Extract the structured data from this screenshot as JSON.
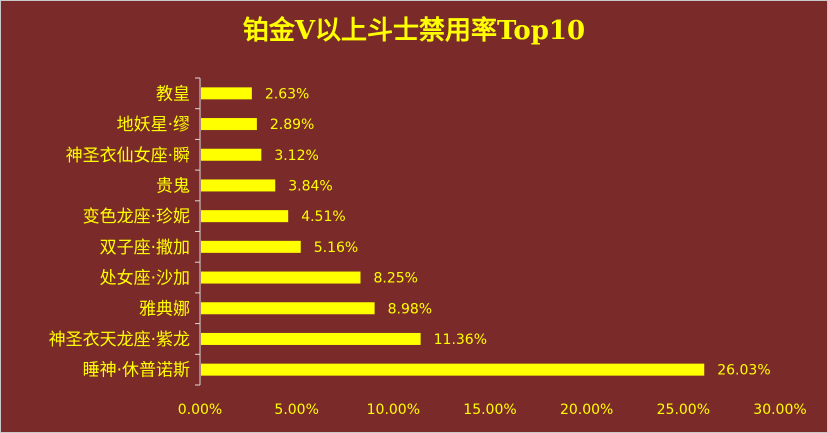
{
  "colors": {
    "background": "#7b2a2a",
    "bar": "#ffff00",
    "text": "#ffff00",
    "axis": "#d9d9d9"
  },
  "chart_data": {
    "type": "bar",
    "orientation": "horizontal",
    "title": "铂金V以上斗士禁用率Top10",
    "categories": [
      "教皇",
      "地妖星·缪",
      "神圣衣仙女座·瞬",
      "贵鬼",
      "变色龙座·珍妮",
      "双子座·撒加",
      "处女座·沙加",
      "雅典娜",
      "神圣衣天龙座·紫龙",
      "睡神·休普诺斯"
    ],
    "values": [
      2.63,
      2.89,
      3.12,
      3.84,
      4.51,
      5.16,
      8.25,
      8.98,
      11.36,
      26.03
    ],
    "value_labels": [
      "2.63%",
      "2.89%",
      "3.12%",
      "3.84%",
      "4.51%",
      "5.16%",
      "8.25%",
      "8.98%",
      "11.36%",
      "26.03%"
    ],
    "x_ticks": [
      "0.00%",
      "5.00%",
      "10.00%",
      "15.00%",
      "20.00%",
      "25.00%",
      "30.00%"
    ],
    "xlim": [
      0,
      30
    ],
    "grid": false,
    "legend": "none"
  }
}
